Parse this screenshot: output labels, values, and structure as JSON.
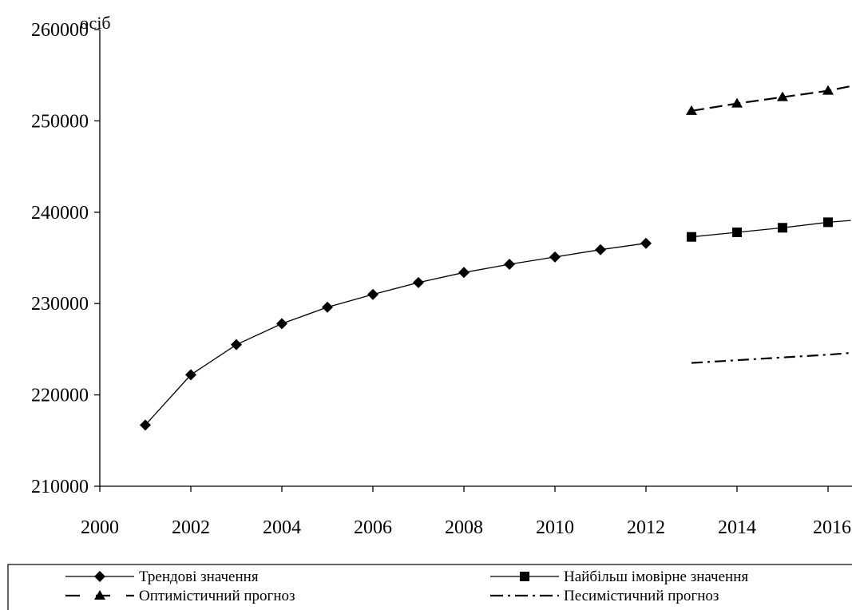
{
  "chart_data": {
    "type": "line",
    "unit_label": "осіб",
    "xlim": [
      2000,
      2016
    ],
    "ylim": [
      210000,
      260000
    ],
    "x_ticks": [
      "2000",
      "2002",
      "2004",
      "2006",
      "2008",
      "2010",
      "2012",
      "2014",
      "2016"
    ],
    "y_ticks": [
      "210000",
      "220000",
      "230000",
      "240000",
      "250000",
      "260000"
    ],
    "grid": false,
    "legend_position": "bottom",
    "series": [
      {
        "name": "Трендові значення",
        "marker": "diamond",
        "line": "solid",
        "x": [
          2001,
          2002,
          2003,
          2004,
          2005,
          2006,
          2007,
          2008,
          2009,
          2010,
          2011,
          2012
        ],
        "values": [
          216700,
          222200,
          225500,
          227800,
          229600,
          231000,
          232300,
          233400,
          234300,
          235100,
          235900,
          236600
        ]
      },
      {
        "name": "Найбільш імовірне значення",
        "marker": "square",
        "line": "solid",
        "x": [
          2013,
          2014,
          2015,
          2016,
          2016.5
        ],
        "values": [
          237300,
          237800,
          238300,
          238900,
          239100
        ],
        "marked": [
          true,
          true,
          true,
          true,
          false
        ]
      },
      {
        "name": "Оптимістичний прогноз",
        "marker": "triangle",
        "line": "dashed",
        "x": [
          2013,
          2014,
          2015,
          2016,
          2016.5
        ],
        "values": [
          251100,
          251900,
          252600,
          253300,
          253800
        ],
        "marked": [
          true,
          true,
          true,
          true,
          false
        ]
      },
      {
        "name": "Песимістичний прогноз",
        "marker": "none",
        "line": "dash-dot",
        "x": [
          2013,
          2014,
          2015,
          2016,
          2016.5
        ],
        "values": [
          223500,
          223800,
          224100,
          224400,
          224600
        ]
      }
    ]
  }
}
